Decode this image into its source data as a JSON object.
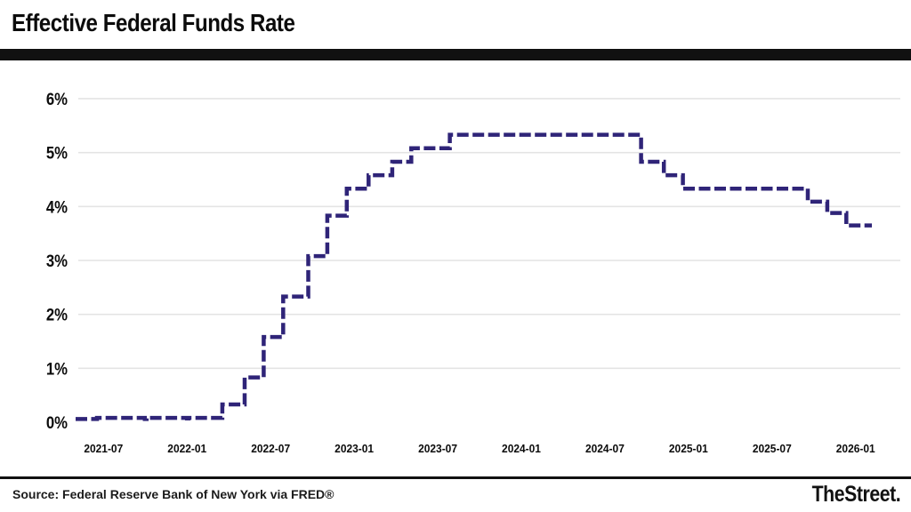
{
  "header": {
    "title": "Effective Federal Funds Rate"
  },
  "footer": {
    "source": "Source: Federal Reserve Bank of New York via FRED®",
    "brand": "TheStreet."
  },
  "chart_data": {
    "type": "line",
    "subtype": "step-after",
    "title": "Effective Federal Funds Rate",
    "xlabel": "",
    "ylabel": "",
    "ylim": [
      0,
      6
    ],
    "y_tick_labels": [
      "0%",
      "1%",
      "2%",
      "3%",
      "4%",
      "5%",
      "6%"
    ],
    "x_tick_labels": [
      "2021-07",
      "2022-01",
      "2022-07",
      "2023-01",
      "2023-07",
      "2024-01",
      "2024-07",
      "2025-01",
      "2025-07",
      "2026-01"
    ],
    "x_range": [
      "2021-05-01",
      "2026-02-06"
    ],
    "grid": "horizontal-only",
    "grid_color": "#e4e4e4",
    "line_color": "#2f2478",
    "line_style": "dashed",
    "line_width": 4.5,
    "legend": "none",
    "series": [
      {
        "name": "Effective Federal Funds Rate (%)",
        "points": [
          [
            "2021-05-01",
            0.06
          ],
          [
            "2021-06-17",
            0.08
          ],
          [
            "2021-09-30",
            0.06
          ],
          [
            "2021-10-04",
            0.08
          ],
          [
            "2021-12-31",
            0.07
          ],
          [
            "2022-01-04",
            0.08
          ],
          [
            "2022-03-17",
            0.33
          ],
          [
            "2022-05-05",
            0.83
          ],
          [
            "2022-06-16",
            1.58
          ],
          [
            "2022-07-28",
            2.33
          ],
          [
            "2022-09-22",
            3.08
          ],
          [
            "2022-11-03",
            3.83
          ],
          [
            "2022-12-15",
            4.33
          ],
          [
            "2023-02-02",
            4.58
          ],
          [
            "2023-03-23",
            4.83
          ],
          [
            "2023-05-04",
            5.08
          ],
          [
            "2023-07-27",
            5.33
          ],
          [
            "2024-09-19",
            4.83
          ],
          [
            "2024-11-08",
            4.58
          ],
          [
            "2024-12-19",
            4.33
          ],
          [
            "2025-09-18",
            4.09
          ],
          [
            "2025-10-30",
            3.88
          ],
          [
            "2025-12-11",
            3.65
          ]
        ],
        "end_value": 3.65
      }
    ]
  }
}
